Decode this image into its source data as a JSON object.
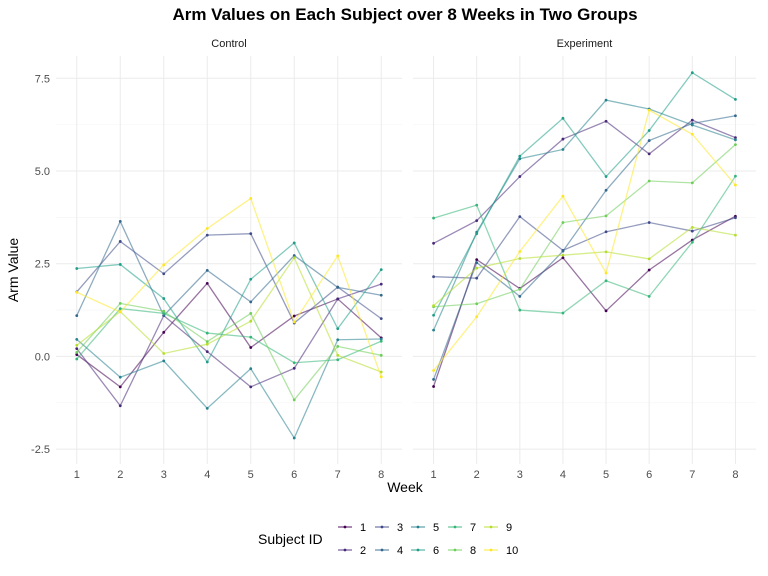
{
  "chart_data": {
    "type": "line",
    "title": "Arm Values on Each Subject over 8 Weeks in Two Groups",
    "xlabel": "Week",
    "ylabel": "Arm Value",
    "x": [
      1,
      2,
      3,
      4,
      5,
      6,
      7,
      8
    ],
    "xticks": [
      "1",
      "2",
      "3",
      "4",
      "5",
      "6",
      "7",
      "8"
    ],
    "yticks": [
      -2.5,
      0.0,
      2.5,
      5.0,
      7.5
    ],
    "ytick_labels": [
      "-2.5",
      "0.0",
      "2.5",
      "5.0",
      "7.5"
    ],
    "ylim": [
      -2.9,
      8.1
    ],
    "grid": true,
    "legend": {
      "title": "Subject ID",
      "position": "bottom",
      "labels": [
        "1",
        "2",
        "3",
        "4",
        "5",
        "6",
        "7",
        "8",
        "9",
        "10"
      ]
    },
    "colors": {
      "1": "#440154",
      "2": "#482878",
      "3": "#3e4a89",
      "4": "#31688e",
      "5": "#26828e",
      "6": "#1f9e89",
      "7": "#35b779",
      "8": "#6ece58",
      "9": "#b5de2b",
      "10": "#fde725"
    },
    "panels": [
      {
        "label": "Control",
        "series": [
          {
            "subject": "1",
            "values": [
              0.05,
              -0.82,
              0.65,
              1.97,
              0.24,
              1.09,
              1.55,
              0.5
            ]
          },
          {
            "subject": "2",
            "values": [
              0.21,
              -1.33,
              1.1,
              0.13,
              -0.82,
              -0.32,
              1.55,
              1.95
            ]
          },
          {
            "subject": "3",
            "values": [
              1.74,
              3.1,
              2.23,
              3.27,
              3.31,
              0.9,
              1.87,
              1.02
            ]
          },
          {
            "subject": "4",
            "values": [
              1.1,
              3.64,
              1.1,
              2.32,
              1.47,
              2.72,
              1.86,
              1.65
            ]
          },
          {
            "subject": "5",
            "values": [
              0.46,
              -0.56,
              -0.12,
              -1.4,
              -0.33,
              -2.2,
              0.45,
              0.47
            ]
          },
          {
            "subject": "6",
            "values": [
              2.37,
              2.48,
              1.56,
              -0.15,
              2.08,
              3.06,
              0.75,
              2.34
            ]
          },
          {
            "subject": "7",
            "values": [
              -0.07,
              1.29,
              1.16,
              0.63,
              0.52,
              -0.17,
              -0.09,
              0.41
            ]
          },
          {
            "subject": "8",
            "values": [
              0.11,
              1.43,
              1.22,
              0.4,
              1.16,
              -1.17,
              0.27,
              0.03
            ]
          },
          {
            "subject": "9",
            "values": [
              0.3,
              1.21,
              0.08,
              0.33,
              0.95,
              2.66,
              0.03,
              -0.42
            ]
          },
          {
            "subject": "10",
            "values": [
              1.73,
              1.2,
              2.47,
              3.45,
              4.26,
              0.93,
              2.71,
              -0.55
            ]
          }
        ]
      },
      {
        "label": "Experiment",
        "series": [
          {
            "subject": "1",
            "values": [
              -0.81,
              2.61,
              1.83,
              2.66,
              1.23,
              2.33,
              3.14,
              3.78
            ]
          },
          {
            "subject": "2",
            "values": [
              3.05,
              3.66,
              4.85,
              5.86,
              6.34,
              5.46,
              6.37,
              5.9
            ]
          },
          {
            "subject": "3",
            "values": [
              2.15,
              2.11,
              3.77,
              2.86,
              3.36,
              3.61,
              3.38,
              3.74
            ]
          },
          {
            "subject": "4",
            "values": [
              -0.62,
              2.53,
              1.62,
              2.84,
              4.48,
              5.82,
              6.28,
              6.49
            ]
          },
          {
            "subject": "5",
            "values": [
              0.71,
              3.35,
              5.33,
              5.58,
              6.91,
              6.67,
              6.24,
              5.84
            ]
          },
          {
            "subject": "6",
            "values": [
              1.11,
              3.31,
              5.4,
              6.42,
              4.85,
              6.09,
              7.65,
              6.93
            ]
          },
          {
            "subject": "7",
            "values": [
              3.73,
              4.08,
              1.25,
              1.17,
              2.04,
              1.62,
              3.08,
              4.86
            ]
          },
          {
            "subject": "8",
            "values": [
              1.34,
              1.42,
              1.81,
              3.61,
              3.79,
              4.73,
              4.68,
              5.71
            ]
          },
          {
            "subject": "9",
            "values": [
              1.37,
              2.38,
              2.64,
              2.73,
              2.82,
              2.63,
              3.48,
              3.27
            ]
          },
          {
            "subject": "10",
            "values": [
              -0.38,
              1.07,
              2.83,
              4.32,
              2.25,
              6.64,
              5.99,
              4.62
            ]
          }
        ]
      }
    ]
  }
}
